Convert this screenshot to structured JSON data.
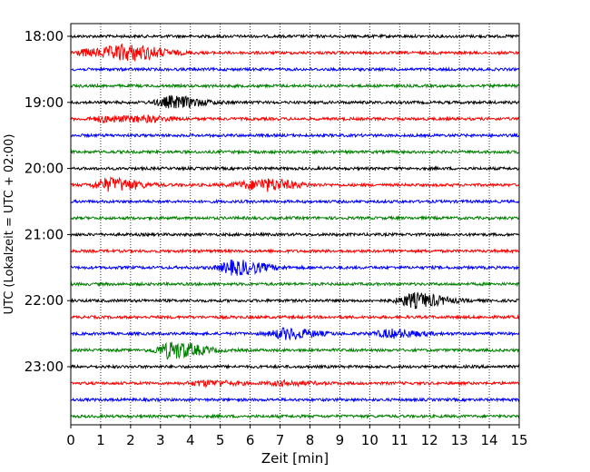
{
  "chart_data": {
    "type": "line",
    "title": "",
    "xlabel": "Zeit  [min]",
    "ylabel": "UTC (Lokalzeit = UTC + 02:00)",
    "xlim": [
      0,
      15
    ],
    "x_ticks": [
      0,
      1,
      2,
      3,
      4,
      5,
      6,
      7,
      8,
      9,
      10,
      11,
      12,
      13,
      14,
      15
    ],
    "y_ticks": [
      "18:00",
      "19:00",
      "20:00",
      "21:00",
      "22:00",
      "23:00"
    ],
    "grid": "vertical dotted",
    "trace_interval_min": 15,
    "trace_color_cycle": [
      "#000000",
      "#ff0000",
      "#0000ff",
      "#008000"
    ],
    "traces": [
      {
        "start": "18:00",
        "events": []
      },
      {
        "start": "18:15",
        "events": [
          {
            "t": 1.7,
            "amp": 1.0
          },
          {
            "t": 0.6,
            "amp": 0.5
          },
          {
            "t": 2.5,
            "amp": 0.4
          }
        ]
      },
      {
        "start": "18:30",
        "events": []
      },
      {
        "start": "18:45",
        "events": []
      },
      {
        "start": "19:00",
        "events": [
          {
            "t": 3.4,
            "amp": 0.9
          }
        ]
      },
      {
        "start": "19:15",
        "events": [
          {
            "t": 1.2,
            "amp": 0.4
          },
          {
            "t": 2.5,
            "amp": 0.35
          }
        ]
      },
      {
        "start": "19:30",
        "events": []
      },
      {
        "start": "19:45",
        "events": []
      },
      {
        "start": "20:00",
        "events": []
      },
      {
        "start": "20:15",
        "events": [
          {
            "t": 1.3,
            "amp": 1.0
          },
          {
            "t": 6.6,
            "amp": 0.7
          },
          {
            "t": 5.8,
            "amp": 0.4
          }
        ]
      },
      {
        "start": "20:30",
        "events": []
      },
      {
        "start": "20:45",
        "events": []
      },
      {
        "start": "21:00",
        "events": []
      },
      {
        "start": "21:15",
        "events": []
      },
      {
        "start": "21:30",
        "events": [
          {
            "t": 5.5,
            "amp": 1.1
          }
        ]
      },
      {
        "start": "21:45",
        "events": []
      },
      {
        "start": "22:00",
        "events": [
          {
            "t": 11.5,
            "amp": 1.1
          }
        ]
      },
      {
        "start": "22:15",
        "events": []
      },
      {
        "start": "22:30",
        "events": [
          {
            "t": 10.7,
            "amp": 0.6
          },
          {
            "t": 7.2,
            "amp": 0.8
          }
        ]
      },
      {
        "start": "22:45",
        "events": [
          {
            "t": 3.4,
            "amp": 1.3
          }
        ]
      },
      {
        "start": "23:00",
        "events": []
      },
      {
        "start": "23:15",
        "events": [
          {
            "t": 4.5,
            "amp": 0.4
          },
          {
            "t": 7.1,
            "amp": 0.3
          }
        ]
      },
      {
        "start": "23:30",
        "events": []
      },
      {
        "start": "23:45",
        "events": []
      }
    ]
  }
}
